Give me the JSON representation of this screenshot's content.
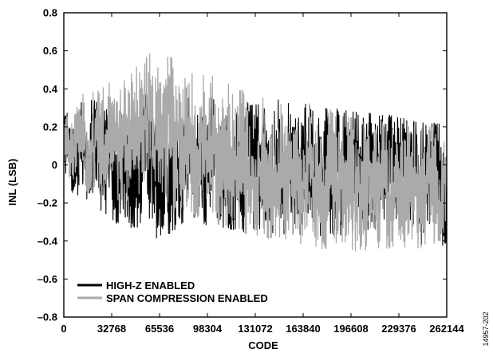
{
  "figure_id": "14957-202",
  "colors": {
    "high_z": "#000000",
    "span_compression": "#aaaaaa",
    "background": "#ffffff"
  },
  "chart_data": {
    "type": "line",
    "xlabel": "CODE",
    "ylabel": "INL (LSB)",
    "xlim": [
      0,
      262144
    ],
    "ylim": [
      -0.8,
      0.8
    ],
    "x_ticks": [
      0,
      32768,
      65536,
      98304,
      131072,
      163840,
      196608,
      229376,
      262144
    ],
    "x_tick_labels": [
      "0",
      "32768",
      "65536",
      "98304",
      "131072",
      "163840",
      "196608",
      "229376",
      "262144"
    ],
    "y_ticks": [
      0.8,
      0.6,
      0.4,
      0.2,
      0,
      -0.2,
      -0.4,
      -0.6,
      -0.8
    ],
    "y_tick_labels": [
      "0.8",
      "0.6",
      "0.4",
      "0.2",
      "0",
      "–0.2",
      "–0.4",
      "–0.6",
      "–0.8"
    ],
    "legend_position": "bottom-left",
    "grid": false,
    "series": [
      {
        "name": "HIGH-Z ENABLED",
        "color": "#000000",
        "envelope": {
          "x": [
            0,
            16384,
            32768,
            49152,
            60000,
            65536,
            81920,
            98304,
            114688,
            131072,
            147456,
            163840,
            180224,
            196608,
            212992,
            229376,
            245760,
            262144
          ],
          "upper": [
            0.26,
            0.36,
            0.3,
            0.36,
            0.38,
            0.4,
            0.35,
            0.37,
            0.32,
            0.33,
            0.35,
            0.33,
            0.31,
            0.28,
            0.28,
            0.26,
            0.23,
            0.22
          ],
          "lower": [
            -0.12,
            -0.2,
            -0.3,
            -0.34,
            -0.38,
            -0.4,
            -0.32,
            -0.32,
            -0.35,
            -0.36,
            -0.36,
            -0.38,
            -0.38,
            -0.36,
            -0.39,
            -0.4,
            -0.44,
            -0.42
          ]
        }
      },
      {
        "name": "SPAN COMPRESSION ENABLED",
        "color": "#aaaaaa",
        "envelope": {
          "x": [
            0,
            16384,
            32768,
            49152,
            60000,
            65536,
            81920,
            98304,
            114688,
            131072,
            147456,
            163840,
            180224,
            196608,
            212992,
            229376,
            245760,
            262144
          ],
          "upper": [
            0.25,
            0.42,
            0.45,
            0.53,
            0.6,
            0.61,
            0.52,
            0.48,
            0.42,
            0.38,
            0.33,
            0.33,
            0.3,
            0.27,
            0.26,
            0.22,
            0.2,
            0.21
          ],
          "lower": [
            -0.05,
            -0.15,
            -0.18,
            -0.2,
            -0.22,
            -0.24,
            -0.25,
            -0.3,
            -0.35,
            -0.38,
            -0.4,
            -0.42,
            -0.45,
            -0.46,
            -0.44,
            -0.44,
            -0.44,
            -0.4
          ]
        }
      }
    ]
  }
}
